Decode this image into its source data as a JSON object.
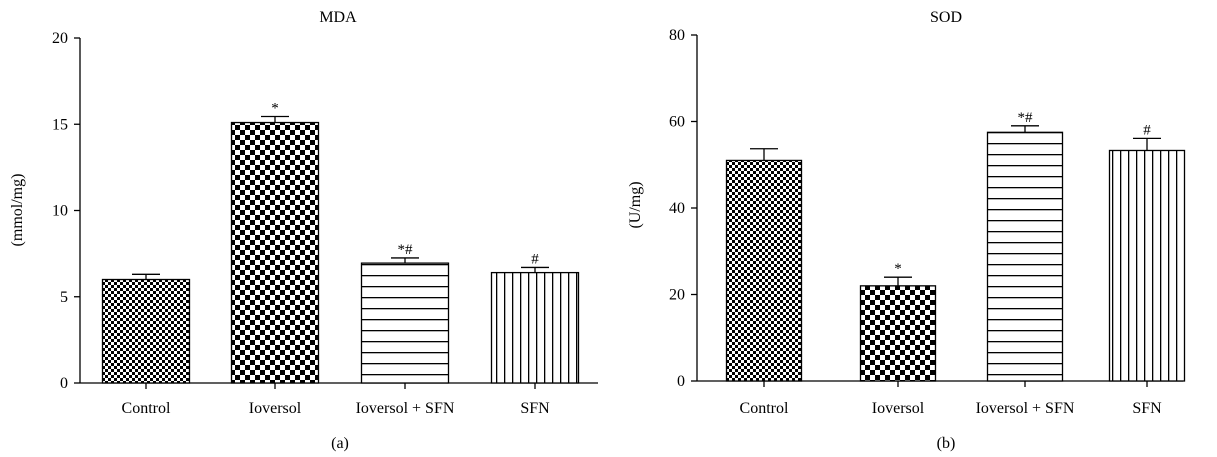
{
  "chart_data": [
    {
      "panel_label": "(a)",
      "type": "bar",
      "title": "MDA",
      "ylabel": "(mmol/mg)",
      "xlabel": "",
      "ylim": [
        0,
        20
      ],
      "yticks": [
        "0",
        "5",
        "10",
        "15",
        "20"
      ],
      "categories": [
        "Control",
        "Ioversol",
        "Ioversol + SFN",
        "SFN"
      ],
      "values": [
        6.0,
        15.1,
        6.95,
        6.4
      ],
      "errors": [
        0.3,
        0.35,
        0.3,
        0.3
      ],
      "significance": [
        "",
        "*",
        "*#",
        "#"
      ],
      "patterns": [
        "small-checker",
        "large-checker",
        "horizontal-lines",
        "vertical-lines"
      ]
    },
    {
      "panel_label": "(b)",
      "type": "bar",
      "title": "SOD",
      "ylabel": "(U/mg)",
      "xlabel": "",
      "ylim": [
        0,
        80
      ],
      "yticks": [
        "0",
        "20",
        "40",
        "60",
        "80"
      ],
      "categories": [
        "Control",
        "Ioversol",
        "Ioversol + SFN",
        "SFN"
      ],
      "values": [
        51,
        22,
        57.5,
        53.3
      ],
      "errors": [
        2.7,
        2.0,
        1.5,
        2.8
      ],
      "significance": [
        "",
        "*",
        "*#",
        "#"
      ],
      "patterns": [
        "small-checker",
        "large-checker",
        "horizontal-lines",
        "vertical-lines"
      ]
    }
  ]
}
